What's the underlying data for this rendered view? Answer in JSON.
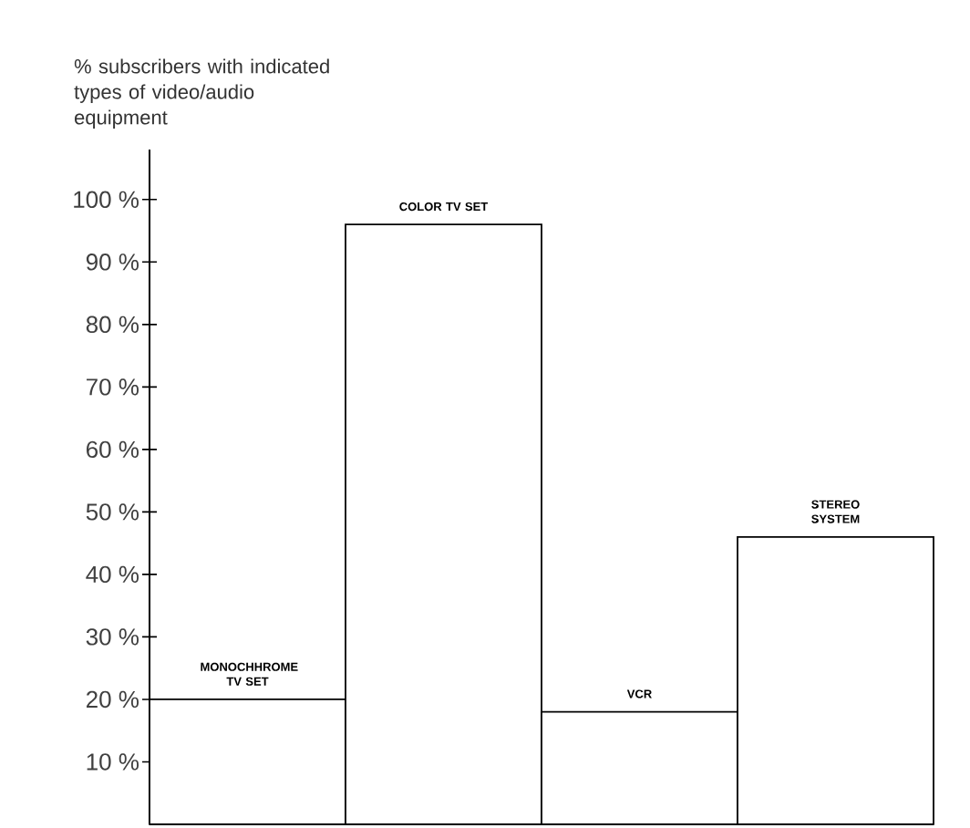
{
  "chart_data": {
    "type": "bar",
    "ylabel": "% subscribers with indicated types of video/audio equipment",
    "categories": [
      "MONOCHHROME TV SET",
      "COLOR TV SET",
      "VCR",
      "STEREO SYSTEM"
    ],
    "values": [
      20,
      96,
      18,
      46
    ],
    "color": "#ffffff",
    "ylim": [
      0,
      108
    ],
    "yticks": [
      {
        "value": 10,
        "label": "10 %"
      },
      {
        "value": 20,
        "label": "20 %"
      },
      {
        "value": 30,
        "label": "30 %"
      },
      {
        "value": 40,
        "label": "40 %"
      },
      {
        "value": 50,
        "label": "50 %"
      },
      {
        "value": 60,
        "label": "60 %"
      },
      {
        "value": 70,
        "label": "70 %"
      },
      {
        "value": 80,
        "label": "80 %"
      },
      {
        "value": 90,
        "label": "90 %"
      },
      {
        "value": 100,
        "label": "100 %"
      }
    ],
    "grid": false
  }
}
